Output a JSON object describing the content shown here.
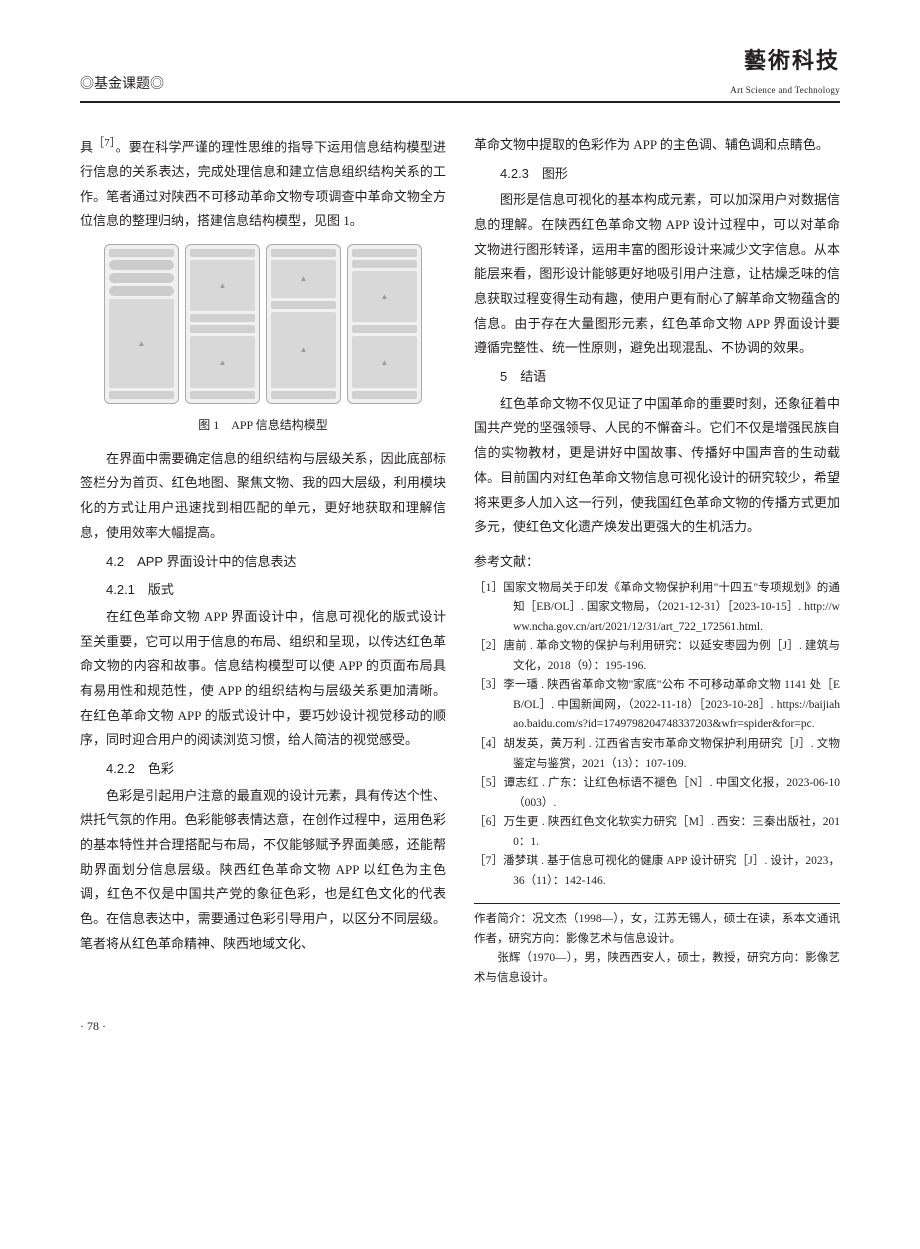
{
  "header": {
    "section_label": "◎基金课题◎",
    "journal_name": "藝術科技",
    "journal_sub": "Art Science and Technology"
  },
  "page_number": "· 78 ·",
  "left": {
    "p1_a": "具",
    "p1_sup": "［7］",
    "p1_b": "。要在科学严谨的理性思维的指导下运用信息结构模型进行信息的关系表达，完成处理信息和建立信息组织结构关系的工作。笔者通过对陕西不可移动革命文物专项调查中革命文物全方位信息的整理归纳，搭建信息结构模型，见图 1。",
    "fig_caption": "图 1　APP 信息结构模型",
    "p2": "在界面中需要确定信息的组织结构与层级关系，因此底部标签栏分为首页、红色地图、聚焦文物、我的四大层级，利用模块化的方式让用户迅速找到相匹配的单元，更好地获取和理解信息，使用效率大幅提高。",
    "h42": "4.2　APP 界面设计中的信息表达",
    "h421": "4.2.1　版式",
    "p3": "在红色革命文物 APP 界面设计中，信息可视化的版式设计至关重要，它可以用于信息的布局、组织和呈现，以传达红色革命文物的内容和故事。信息结构模型可以使 APP 的页面布局具有易用性和规范性，使 APP 的组织结构与层级关系更加清晰。在红色革命文物 APP 的版式设计中，要巧妙设计视觉移动的顺序，同时迎合用户的阅读浏览习惯，给人简洁的视觉感受。",
    "h422": "4.2.2　色彩",
    "p4": "色彩是引起用户注意的最直观的设计元素，具有传达个性、烘托气氛的作用。色彩能够表情达意，在创作过程中，运用色彩的基本特性并合理搭配与布局，不仅能够赋予界面美感，还能帮助界面划分信息层级。陕西红色革命文物 APP 以红色为主色调，红色不仅是中国共产党的象征色彩，也是红色文化的代表色。在信息表达中，需要通过色彩引导用户，以区分不同层级。笔者将从红色革命精神、陕西地域文化、"
  },
  "right": {
    "p5": "革命文物中提取的色彩作为 APP 的主色调、辅色调和点睛色。",
    "h423": "4.2.3　图形",
    "p6": "图形是信息可视化的基本构成元素，可以加深用户对数据信息的理解。在陕西红色革命文物 APP 设计过程中，可以对革命文物进行图形转译，运用丰富的图形设计来减少文字信息。从本能层来看，图形设计能够更好地吸引用户注意，让枯燥乏味的信息获取过程变得生动有趣，使用户更有耐心了解革命文物蕴含的信息。由于存在大量图形元素，红色革命文物 APP 界面设计要遵循完整性、统一性原则，避免出现混乱、不协调的效果。",
    "h5": "5　结语",
    "p7": "红色革命文物不仅见证了中国革命的重要时刻，还象征着中国共产党的坚强领导、人民的不懈奋斗。它们不仅是增强民族自信的实物教材，更是讲好中国故事、传播好中国声音的生动载体。目前国内对红色革命文物信息可视化设计的研究较少，希望将来更多人加入这一行列，使我国红色革命文物的传播方式更加多元，使红色文化遗产焕发出更强大的生机活力。",
    "refs_title": "参考文献：",
    "refs": [
      "［1］国家文物局关于印发《革命文物保护利用\"十四五\"专项规划》的通知［EB/OL］. 国家文物局，（2021-12-31）［2023-10-15］. http://www.ncha.gov.cn/art/2021/12/31/art_722_172561.html.",
      "［2］唐前 . 革命文物的保护与利用研究：以延安枣园为例［J］. 建筑与文化，2018（9）：195-196.",
      "［3］李一璠 . 陕西省革命文物\"家底\"公布 不可移动革命文物 1141 处［EB/OL］. 中国新闻网，（2022-11-18）［2023-10-28］. https://baijiahao.baidu.com/s?id=1749798204748337203&wfr=spider&for=pc.",
      "［4］胡发英，黄万利 . 江西省吉安市革命文物保护利用研究［J］. 文物鉴定与鉴赏，2021（13）：107-109.",
      "［5］谭志红 . 广东：让红色标语不褪色［N］. 中国文化报，2023-06-10（003）.",
      "［6］万生更 . 陕西红色文化软实力研究［M］. 西安：三秦出版社，2010：1.",
      "［7］潘梦琪 . 基于信息可视化的健康 APP 设计研究［J］. 设计，2023，36（11）：142-146."
    ],
    "author_title": "作者简介：",
    "author1": "况文杰（1998—），女，江苏无锡人，硕士在读，系本文通讯作者，研究方向：影像艺术与信息设计。",
    "author2": "　　张辉（1970—），男，陕西西安人，硕士，教授，研究方向：影像艺术与信息设计。"
  }
}
